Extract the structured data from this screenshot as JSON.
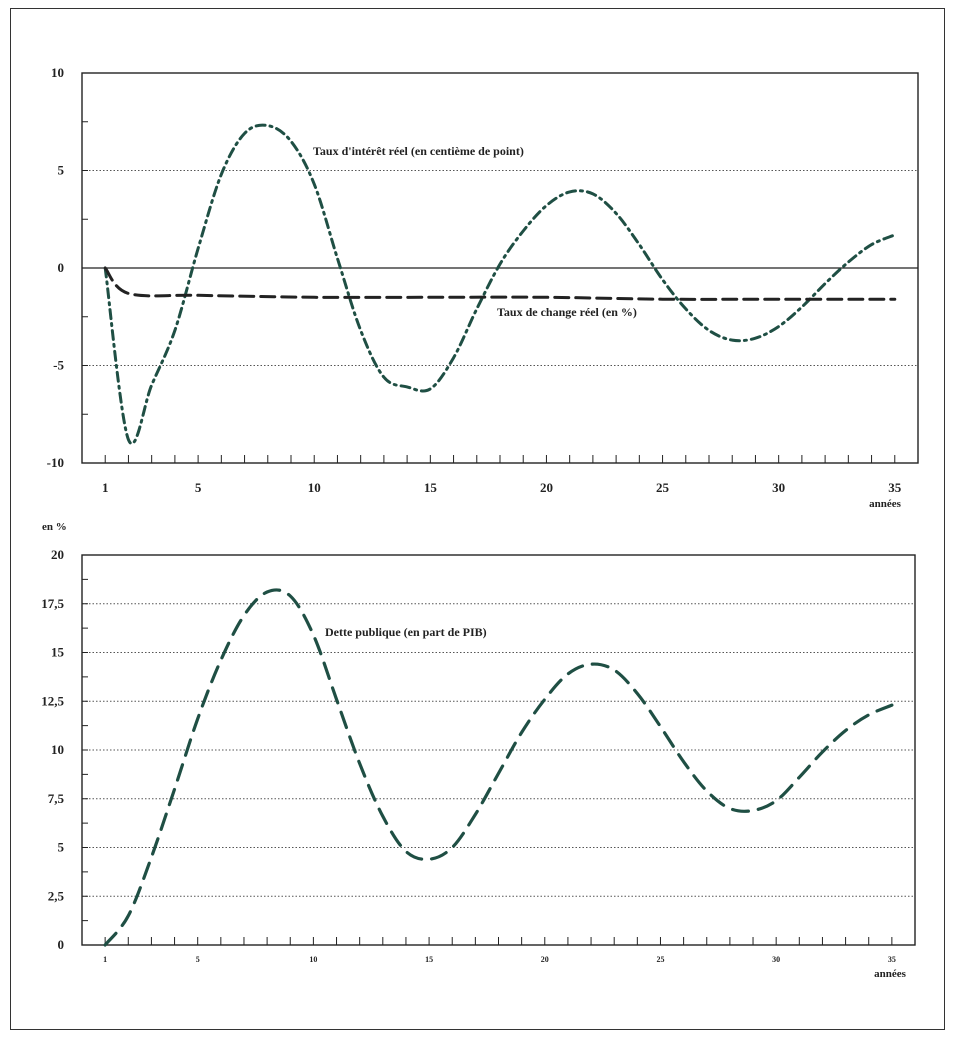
{
  "chart_data": [
    {
      "type": "line",
      "title": "",
      "xlabel": "années",
      "ylabel": "",
      "xlim": [
        0,
        36
      ],
      "ylim": [
        -10,
        10
      ],
      "x_ticks": [
        1,
        5,
        10,
        15,
        20,
        25,
        30,
        35
      ],
      "y_ticks": [
        10,
        5,
        0,
        -5,
        -10
      ],
      "y_tick_labels": [
        "10",
        "5",
        "0",
        "-5",
        "-10"
      ],
      "grid": "horizontal-dotted",
      "series": [
        {
          "name": "Taux d'intérêt réel (en centième de point)",
          "style": "dash-dot",
          "color": "#1f4f44",
          "x": [
            1,
            2,
            3,
            4,
            5,
            6,
            7,
            8,
            9,
            10,
            11,
            12,
            13,
            14,
            15,
            16,
            17,
            18,
            19,
            20,
            21,
            22,
            23,
            24,
            25,
            26,
            27,
            28,
            29,
            30,
            31,
            32,
            33,
            34,
            35
          ],
          "y": [
            0,
            -8.8,
            -6.0,
            -3.2,
            1.0,
            4.8,
            6.9,
            7.3,
            6.5,
            4.3,
            0.5,
            -3.2,
            -5.6,
            -6.1,
            -6.2,
            -4.6,
            -2.1,
            0.2,
            1.9,
            3.2,
            3.9,
            3.8,
            2.8,
            1.2,
            -0.6,
            -2.1,
            -3.2,
            -3.7,
            -3.6,
            -3.0,
            -2.0,
            -0.8,
            0.3,
            1.2,
            1.7
          ]
        },
        {
          "name": "Taux de change réel (en %)",
          "style": "dashed",
          "color": "#222222",
          "x": [
            1,
            2,
            5,
            10,
            15,
            20,
            25,
            30,
            35
          ],
          "y": [
            0,
            -1.3,
            -1.4,
            -1.5,
            -1.5,
            -1.5,
            -1.6,
            -1.6,
            -1.6
          ]
        }
      ]
    },
    {
      "type": "line",
      "title": "",
      "xlabel": "années",
      "ylabel": "en %",
      "xlim": [
        0,
        36
      ],
      "ylim": [
        0,
        20
      ],
      "x_ticks": [
        1,
        5,
        10,
        15,
        20,
        25,
        30,
        35
      ],
      "y_ticks": [
        0,
        2.5,
        5,
        7.5,
        10,
        12.5,
        15,
        17.5,
        20
      ],
      "y_tick_labels": [
        "0",
        "2,5",
        "5",
        "7,5",
        "10",
        "12,5",
        "15",
        "17,5",
        "20"
      ],
      "grid": "horizontal-dotted",
      "series": [
        {
          "name": "Dette publique (en part de PIB)",
          "style": "dashed",
          "color": "#1f4f44",
          "x": [
            1,
            2,
            3,
            4,
            5,
            6,
            7,
            8,
            9,
            10,
            11,
            12,
            13,
            14,
            15,
            16,
            17,
            18,
            19,
            20,
            21,
            22,
            23,
            24,
            25,
            26,
            27,
            28,
            29,
            30,
            31,
            32,
            33,
            34,
            35
          ],
          "y": [
            0,
            1.5,
            4.5,
            8.0,
            11.6,
            14.6,
            16.9,
            18.1,
            17.9,
            15.9,
            12.6,
            9.3,
            6.6,
            4.8,
            4.4,
            5.0,
            6.7,
            8.8,
            10.9,
            12.6,
            13.9,
            14.4,
            14.1,
            12.9,
            11.2,
            9.4,
            7.9,
            7.0,
            6.9,
            7.4,
            8.6,
            9.9,
            11.0,
            11.8,
            12.3
          ]
        }
      ]
    }
  ]
}
